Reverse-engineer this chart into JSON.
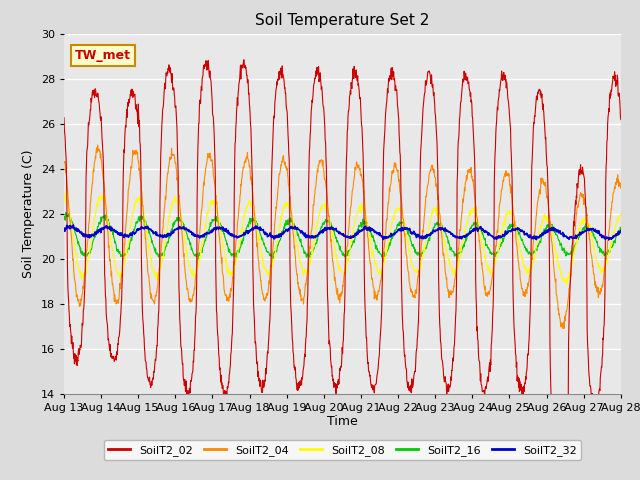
{
  "title": "Soil Temperature Set 2",
  "xlabel": "Time",
  "ylabel": "Soil Temperature (C)",
  "ylim": [
    14,
    30
  ],
  "xlim": [
    0,
    360
  ],
  "annotation": "TW_met",
  "series_colors": {
    "SoilT2_02": "#cc0000",
    "SoilT2_04": "#ff8800",
    "SoilT2_08": "#ffff00",
    "SoilT2_16": "#00cc00",
    "SoilT2_32": "#0000cc"
  },
  "background_color": "#e8e8e8",
  "grid_color": "#ffffff",
  "x_tick_labels": [
    "Aug 13",
    "Aug 14",
    "Aug 15",
    "Aug 16",
    "Aug 17",
    "Aug 18",
    "Aug 19",
    "Aug 20",
    "Aug 21",
    "Aug 22",
    "Aug 23",
    "Aug 24",
    "Aug 25",
    "Aug 26",
    "Aug 27",
    "Aug 28"
  ],
  "x_tick_positions": [
    0,
    24,
    48,
    72,
    96,
    120,
    144,
    168,
    192,
    216,
    240,
    264,
    288,
    312,
    336,
    360
  ],
  "y_tick_positions": [
    14,
    16,
    18,
    20,
    22,
    24,
    26,
    28,
    30
  ],
  "figsize": [
    6.4,
    4.8
  ],
  "dpi": 100
}
